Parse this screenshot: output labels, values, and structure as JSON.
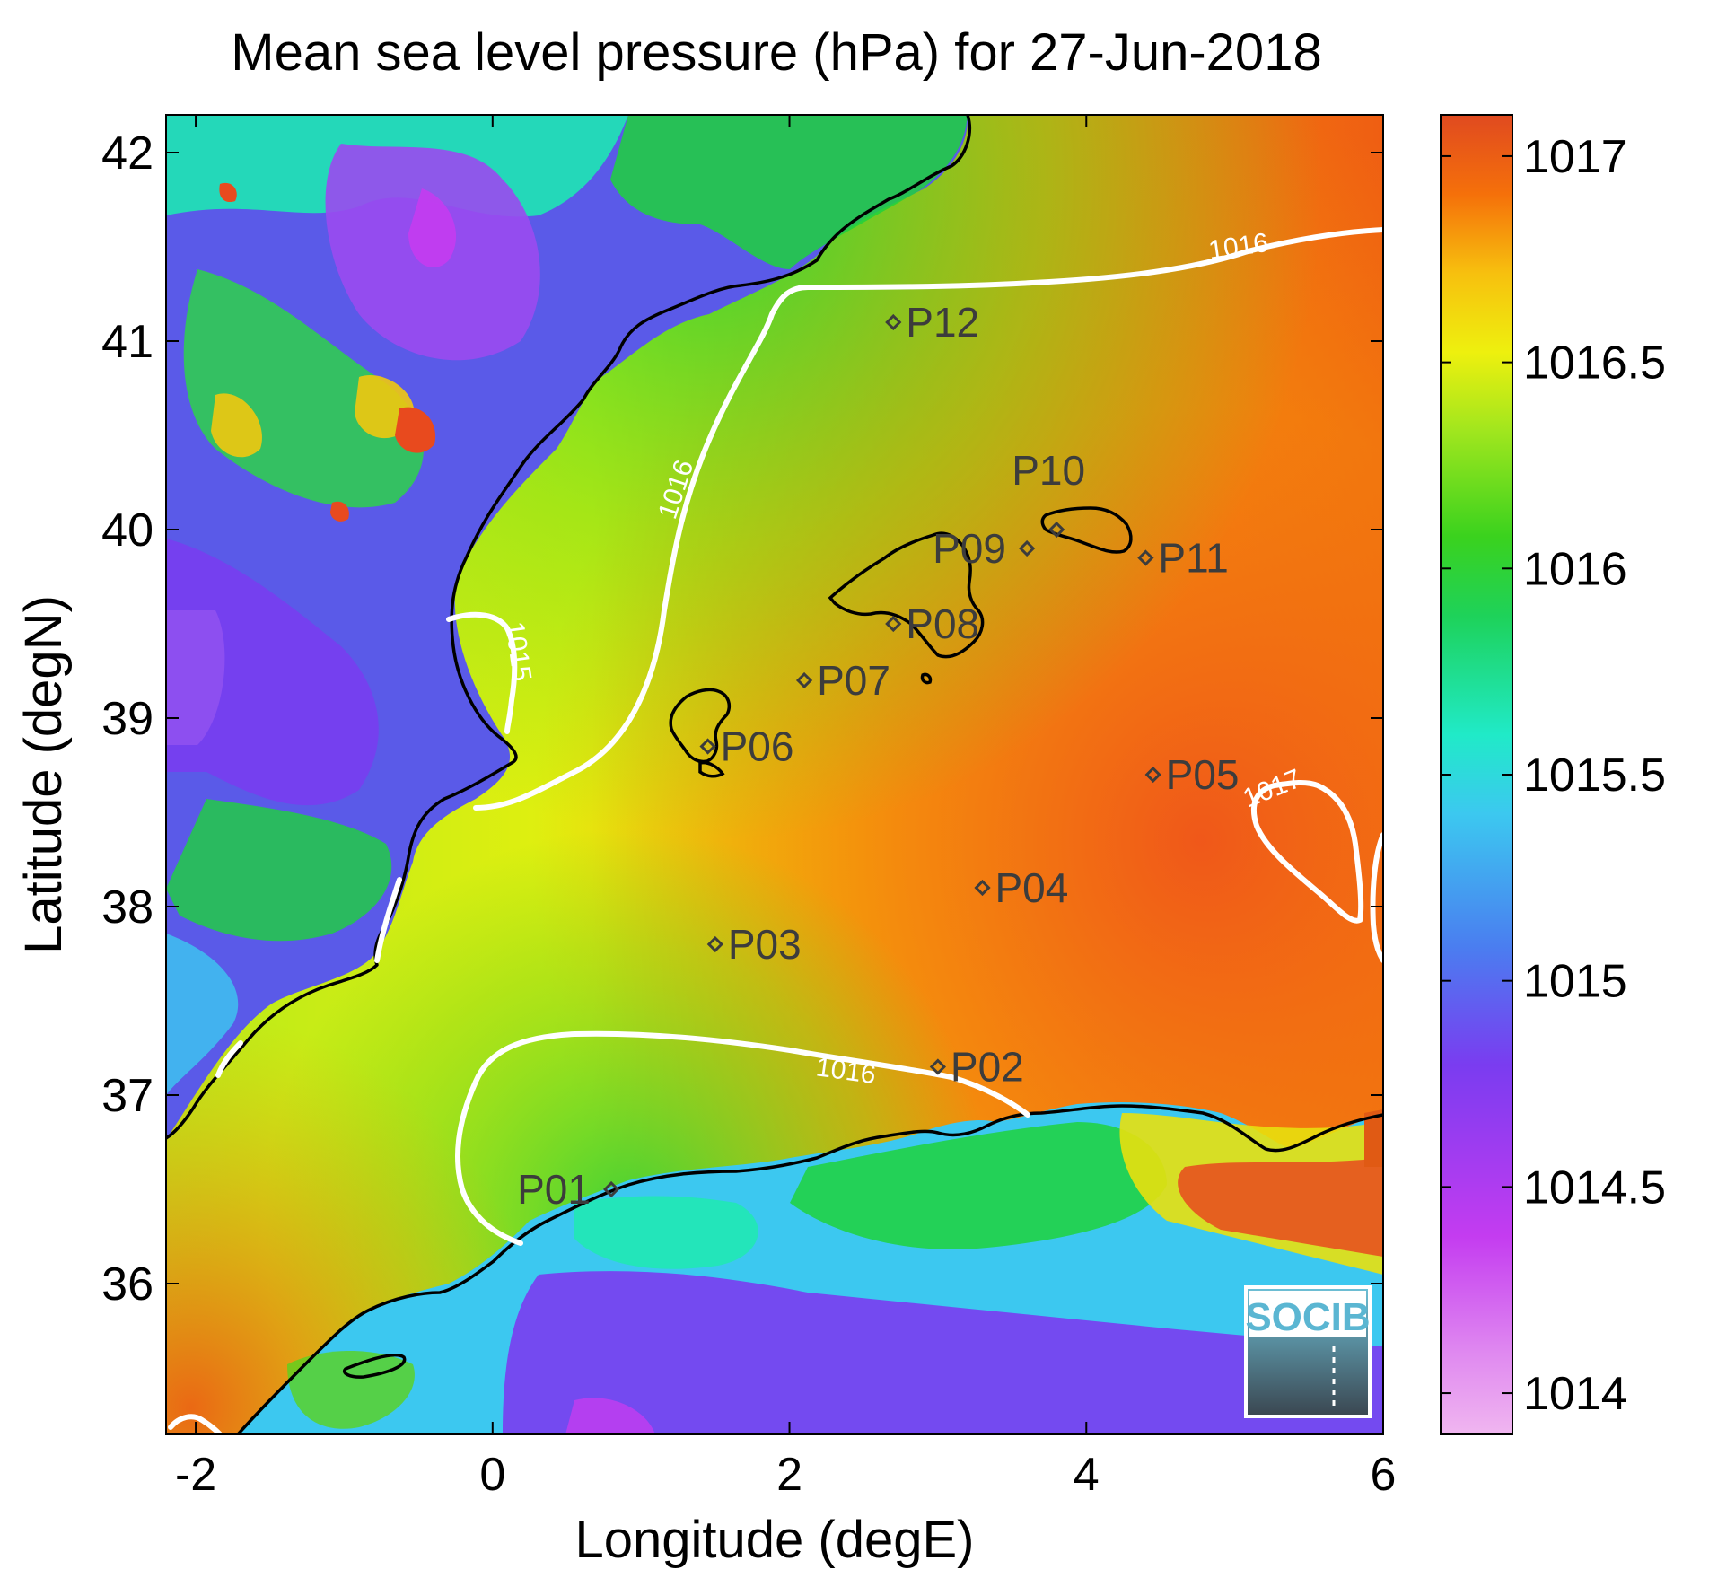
{
  "title": "Mean sea level pressure (hPa) for 27-Jun-2018",
  "xlabel": "Longitude (degE)",
  "ylabel": "Latitude (degN)",
  "logo": "SOCIB",
  "chart_data": {
    "type": "heatmap",
    "title": "Mean sea level pressure (hPa) for 27-Jun-2018",
    "xlabel": "Longitude (degE)",
    "ylabel": "Latitude (degN)",
    "xlim": [
      -2.2,
      6.0
    ],
    "ylim": [
      35.2,
      42.2
    ],
    "xticks": [
      -2,
      0,
      2,
      4,
      6
    ],
    "xtick_labels": [
      "-2",
      "0",
      "2",
      "4",
      "6"
    ],
    "yticks": [
      36,
      37,
      38,
      39,
      40,
      41,
      42
    ],
    "ytick_labels": [
      "36",
      "37",
      "38",
      "39",
      "40",
      "41",
      "42"
    ],
    "colorbar": {
      "label": "",
      "range": [
        1013.9,
        1017.1
      ],
      "ticks": [
        1014,
        1014.5,
        1015,
        1015.5,
        1016,
        1016.5,
        1017
      ],
      "tick_labels": [
        "1014",
        "1014.5",
        "1015",
        "1015.5",
        "1016",
        "1016.5",
        "1017"
      ],
      "colors": [
        "#f0b6f0",
        "#c43cf0",
        "#7a3cf0",
        "#4a6af0",
        "#3cc8f0",
        "#1eeab0",
        "#1ed22e",
        "#66e01e",
        "#d2ee0e",
        "#f2c80e",
        "#f58a0a",
        "#f05a14",
        "#e04a1e"
      ]
    },
    "contour_labels": [
      "1016",
      "1016",
      "1015",
      "1016",
      "1017"
    ],
    "stations": [
      {
        "name": "P01",
        "lon": 0.8,
        "lat": 36.5
      },
      {
        "name": "P02",
        "lon": 3.0,
        "lat": 37.15
      },
      {
        "name": "P03",
        "lon": 1.5,
        "lat": 37.8
      },
      {
        "name": "P04",
        "lon": 3.3,
        "lat": 38.1
      },
      {
        "name": "P05",
        "lon": 4.45,
        "lat": 38.7
      },
      {
        "name": "P06",
        "lon": 1.45,
        "lat": 38.85
      },
      {
        "name": "P07",
        "lon": 2.1,
        "lat": 39.2
      },
      {
        "name": "P08",
        "lon": 2.7,
        "lat": 39.5
      },
      {
        "name": "P09",
        "lon": 3.6,
        "lat": 39.9
      },
      {
        "name": "P10",
        "lon": 3.8,
        "lat": 40.0
      },
      {
        "name": "P11",
        "lon": 4.4,
        "lat": 39.85
      },
      {
        "name": "P12",
        "lon": 2.7,
        "lat": 41.1
      }
    ]
  }
}
